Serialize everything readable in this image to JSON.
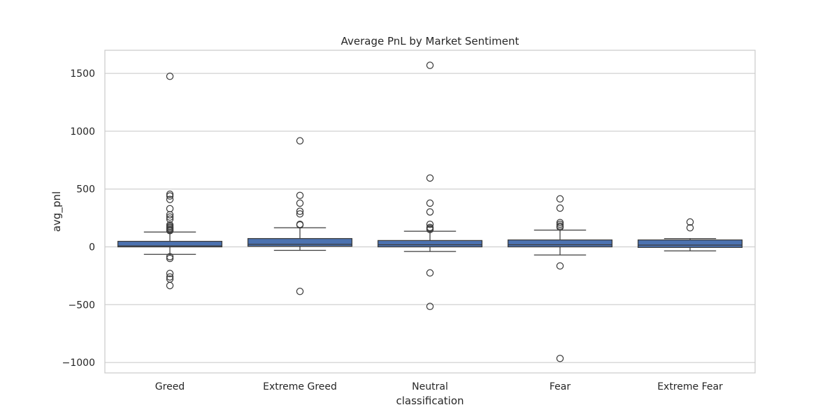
{
  "chart_data": {
    "type": "box",
    "title": "Average PnL by Market Sentiment",
    "xlabel": "classification",
    "ylabel": "avg_pnl",
    "ylim": [
      -1090,
      1700
    ],
    "yticks": [
      -1000,
      -500,
      0,
      500,
      1000,
      1500
    ],
    "ytick_labels": [
      "−1000",
      "−500",
      "0",
      "500",
      "1000",
      "1500"
    ],
    "grid": true,
    "box_color": "#4c72b0",
    "categories": [
      "Greed",
      "Extreme Greed",
      "Neutral",
      "Fear",
      "Extreme Fear"
    ],
    "boxes": [
      {
        "category": "Greed",
        "q1": 0,
        "median": 8,
        "q3": 48,
        "whisker_low": -65,
        "whisker_high": 128,
        "fliers": [
          1475,
          455,
          440,
          410,
          330,
          278,
          258,
          240,
          190,
          178,
          168,
          158,
          148,
          140,
          -85,
          -100,
          -230,
          -260,
          -278,
          -335
        ]
      },
      {
        "category": "Extreme Greed",
        "q1": 5,
        "median": 22,
        "q3": 72,
        "whisker_low": -30,
        "whisker_high": 165,
        "fliers": [
          917,
          445,
          378,
          308,
          285,
          195,
          190,
          -385
        ]
      },
      {
        "category": "Neutral",
        "q1": 0,
        "median": 18,
        "q3": 55,
        "whisker_low": -40,
        "whisker_high": 135,
        "fliers": [
          1570,
          595,
          378,
          302,
          195,
          168,
          158,
          150,
          -225,
          -515
        ]
      },
      {
        "category": "Fear",
        "q1": 0,
        "median": 18,
        "q3": 60,
        "whisker_low": -70,
        "whisker_high": 145,
        "fliers": [
          415,
          335,
          210,
          195,
          180,
          170,
          -165,
          -965
        ]
      },
      {
        "category": "Extreme Fear",
        "q1": -5,
        "median": 15,
        "q3": 60,
        "whisker_low": -35,
        "whisker_high": 72,
        "fliers": [
          215,
          165
        ]
      }
    ]
  }
}
